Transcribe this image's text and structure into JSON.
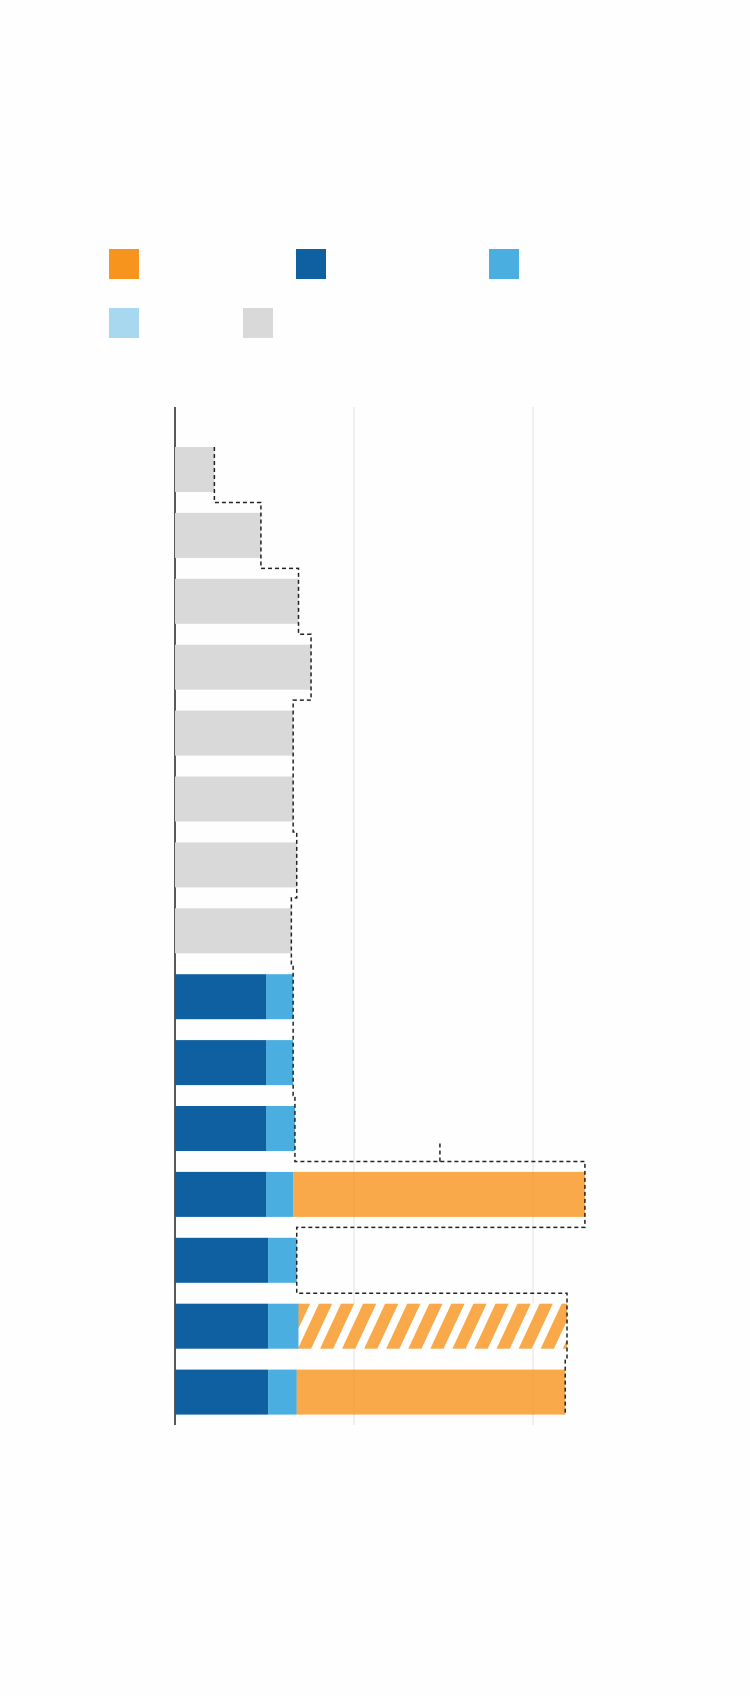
{
  "chart_data": {
    "type": "stacked-barh",
    "categories": [
      null,
      null,
      null,
      null,
      null,
      null,
      null,
      null,
      null,
      null,
      null,
      null,
      null,
      null,
      null
    ],
    "series": [
      {
        "color": "#f7941d",
        "values": [
          null,
          null,
          null,
          null,
          null,
          null,
          null,
          null,
          null,
          null,
          null,
          1.63,
          null,
          1.5,
          1.5
        ],
        "hatch": [
          false,
          false,
          false,
          false,
          false,
          false,
          false,
          false,
          false,
          false,
          false,
          false,
          false,
          true,
          false
        ]
      },
      {
        "color": "#0e60a0",
        "values": [
          null,
          null,
          null,
          null,
          null,
          null,
          null,
          null,
          0.51,
          0.51,
          0.51,
          0.51,
          0.52,
          0.52,
          0.52
        ]
      },
      {
        "color": "#4aaee0",
        "values": [
          null,
          null,
          null,
          null,
          null,
          null,
          null,
          null,
          0.15,
          0.15,
          0.16,
          0.15,
          0.16,
          0.17,
          0.16
        ]
      },
      {
        "color": "#a8d8f0",
        "values": [
          null,
          null,
          null,
          null,
          null,
          null,
          null,
          null,
          null,
          null,
          null,
          null,
          null,
          null,
          null
        ]
      },
      {
        "color": "#d9d9d9",
        "values": [
          0.22,
          0.48,
          0.69,
          0.76,
          0.66,
          0.66,
          0.68,
          0.65,
          null,
          null,
          null,
          null,
          null,
          null,
          null
        ]
      }
    ],
    "xlim": [
      0,
      2.3
    ],
    "xticks": [
      0,
      1,
      2
    ],
    "grid": true
  }
}
